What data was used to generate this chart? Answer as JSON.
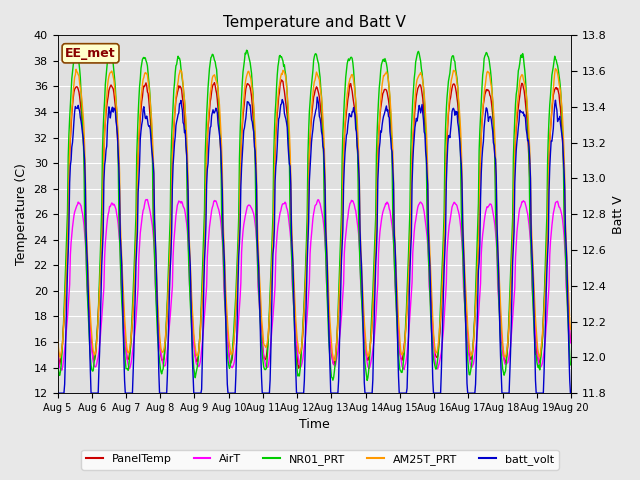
{
  "title": "Temperature and Batt V",
  "xlabel": "Time",
  "ylabel_left": "Temperature (C)",
  "ylabel_right": "Batt V",
  "ylim_left": [
    12,
    40
  ],
  "ylim_right": [
    11.8,
    13.8
  ],
  "annotation": "EE_met",
  "fig_facecolor": "#e8e8e8",
  "ax_facecolor": "#e0e0e0",
  "series": {
    "PanelTemp": {
      "color": "#cc0000",
      "lw": 1.0
    },
    "AirT": {
      "color": "#ff00ff",
      "lw": 1.0
    },
    "NR01_PRT": {
      "color": "#00cc00",
      "lw": 1.0
    },
    "AM25T_PRT": {
      "color": "#ff9900",
      "lw": 1.0
    },
    "batt_volt": {
      "color": "#0000cc",
      "lw": 1.0
    }
  },
  "xtick_labels": [
    "Aug 5",
    "Aug 6",
    "Aug 7",
    "Aug 8",
    "Aug 9",
    "Aug 10",
    "Aug 11",
    "Aug 12",
    "Aug 13",
    "Aug 14",
    "Aug 15",
    "Aug 16",
    "Aug 17",
    "Aug 18",
    "Aug 19",
    "Aug 20"
  ],
  "yticks_left": [
    12,
    14,
    16,
    18,
    20,
    22,
    24,
    26,
    28,
    30,
    32,
    34,
    36,
    38,
    40
  ],
  "yticks_right": [
    11.8,
    12.0,
    12.2,
    12.4,
    12.6,
    12.8,
    13.0,
    13.2,
    13.4,
    13.6,
    13.8
  ]
}
